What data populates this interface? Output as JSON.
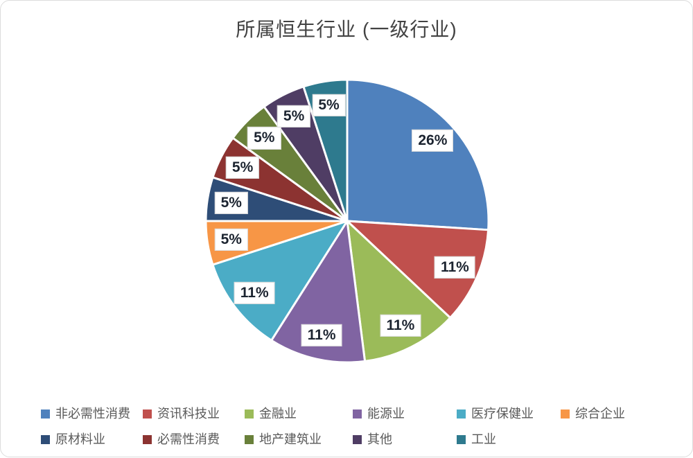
{
  "frame": {
    "background": "#ffffff",
    "border_color": "#dcdcdc"
  },
  "colors": {
    "title_text": "#424242",
    "legend_text": "#595959",
    "data_label_text": "#1c2430",
    "data_label_background": "#ffffff",
    "data_label_border": "#d9d9d9",
    "slice_separator": "#ffffff"
  },
  "chart_data": {
    "type": "pie",
    "title": "所属恒生行业 (一级行业)",
    "start_angle_deg": 0,
    "direction": "clockwise",
    "legend_position": "bottom",
    "label_format": "percent",
    "total": 100,
    "slices": [
      {
        "label": "非必需性消费",
        "value": 26,
        "display": "26%",
        "color": "#4F81BD"
      },
      {
        "label": "资讯科技业",
        "value": 11,
        "display": "11%",
        "color": "#C0504D"
      },
      {
        "label": "金融业",
        "value": 11,
        "display": "11%",
        "color": "#9BBB59"
      },
      {
        "label": "能源业",
        "value": 11,
        "display": "11%",
        "color": "#8064A2"
      },
      {
        "label": "医疗保健业",
        "value": 11,
        "display": "11%",
        "color": "#4BACC6"
      },
      {
        "label": "综合企业",
        "value": 5,
        "display": "5%",
        "color": "#F79646"
      },
      {
        "label": "原材料业",
        "value": 5,
        "display": "5%",
        "color": "#2E4D77"
      },
      {
        "label": "必需性消费",
        "value": 5,
        "display": "5%",
        "color": "#8C3331"
      },
      {
        "label": "地产建筑业",
        "value": 5,
        "display": "5%",
        "color": "#69803A"
      },
      {
        "label": "其他",
        "value": 5,
        "display": "5%",
        "color": "#4F3D64"
      },
      {
        "label": "工业",
        "value": 5,
        "display": "5%",
        "color": "#2E7A8E"
      }
    ]
  }
}
